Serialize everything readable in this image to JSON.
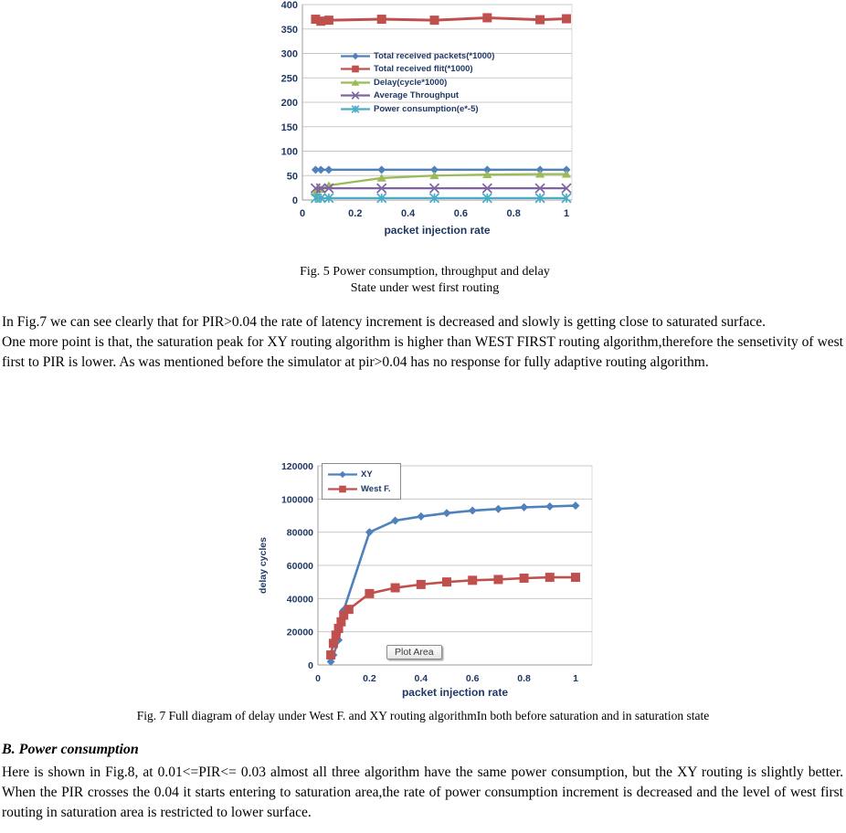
{
  "text": {
    "para1": "In Fig.7 we can see clearly that for PIR>0.04 the rate of latency increment is decreased and slowly is getting close to saturated surface.",
    "para2": "One more point is that, the saturation peak for XY routing algorithm is higher than WEST FIRST routing algorithm,therefore the sensetivity of west first to PIR is lower. As was mentioned before the simulator at pir>0.04 has no response for fully adaptive routing algorithm.",
    "section_b_heading": "B.  Power consumption",
    "para3": "Here is shown in Fig.8, at 0.01<=PIR<= 0.03 almost all three algorithm have the same power consumption, but the XY routing is slightly better. When the PIR crosses the 0.04 it starts entering to saturation area,the rate of power consumption increment is decreased and the level of west first routing in saturation area is restricted to lower surface."
  },
  "figures": {
    "fig5_caption_line1": "Fig. 5 Power consumption, throughput and delay",
    "fig5_caption_line2": "State under west first  routing",
    "fig7_caption": "Fig. 7  Full diagram of delay under West F. and XY routing algorithmIn both before saturation and in saturation state"
  },
  "colors": {
    "blue": "#4F81BD",
    "red": "#C0504D",
    "green": "#9BBB59",
    "purple": "#8064A2",
    "cyan": "#4BACC6",
    "axis_label": "#1F3864",
    "gridline": "#c8c8c8"
  },
  "chart_data": [
    {
      "type": "line",
      "title": "",
      "xlabel": "packet injection rate",
      "ylabel": "",
      "xlim": [
        0,
        1
      ],
      "ylim": [
        0,
        400
      ],
      "xticks": [
        0,
        0.2,
        0.4,
        0.6,
        0.8,
        1
      ],
      "yticks": [
        0,
        50,
        100,
        150,
        200,
        250,
        300,
        350,
        400
      ],
      "grid": true,
      "legend_position": "upper-left-inside",
      "series": [
        {
          "name": "Total received packets(*1000)",
          "color": "#4F81BD",
          "marker": "diamond",
          "msize": 4.5,
          "width": 2.3,
          "points": [
            [
              0.05,
              62
            ],
            [
              0.07,
              62
            ],
            [
              0.1,
              62
            ],
            [
              0.3,
              62
            ],
            [
              0.5,
              62
            ],
            [
              0.7,
              62
            ],
            [
              0.9,
              62
            ],
            [
              1,
              62
            ]
          ]
        },
        {
          "name": "Total received flit(*1000)",
          "color": "#C0504D",
          "marker": "square",
          "msize": 5,
          "width": 3,
          "points": [
            [
              0.05,
              370
            ],
            [
              0.07,
              366
            ],
            [
              0.1,
              368
            ],
            [
              0.3,
              370
            ],
            [
              0.5,
              368
            ],
            [
              0.7,
              373
            ],
            [
              0.9,
              369
            ],
            [
              1,
              371
            ]
          ]
        },
        {
          "name": "Delay(cycle*1000)",
          "color": "#9BBB59",
          "marker": "triangle",
          "msize": 4.5,
          "width": 2.3,
          "points": [
            [
              0.05,
              15
            ],
            [
              0.07,
              22
            ],
            [
              0.1,
              30
            ],
            [
              0.3,
              45
            ],
            [
              0.5,
              50
            ],
            [
              0.7,
              52
            ],
            [
              0.9,
              53
            ],
            [
              1,
              53
            ]
          ]
        },
        {
          "name": "Average Throughput",
          "color": "#8064A2",
          "marker": "x",
          "msize": 5,
          "width": 2.3,
          "points": [
            [
              0.05,
              24
            ],
            [
              0.07,
              24
            ],
            [
              0.1,
              24
            ],
            [
              0.3,
              24
            ],
            [
              0.5,
              24
            ],
            [
              0.7,
              24
            ],
            [
              0.9,
              24
            ],
            [
              1,
              24
            ]
          ]
        },
        {
          "name": "Power consumption(e*-5)",
          "color": "#4BACC6",
          "marker": "asterisk",
          "msize": 5,
          "width": 2.3,
          "points": [
            [
              0.05,
              4
            ],
            [
              0.07,
              4
            ],
            [
              0.1,
              4
            ],
            [
              0.3,
              4
            ],
            [
              0.5,
              4
            ],
            [
              0.7,
              4
            ],
            [
              0.9,
              4
            ],
            [
              1,
              4
            ]
          ]
        }
      ]
    },
    {
      "type": "line",
      "title": "",
      "xlabel": "packet injection rate",
      "ylabel": "delay cycles",
      "xlim": [
        0,
        1
      ],
      "ylim": [
        0,
        120000
      ],
      "xticks": [
        0,
        0.2,
        0.4,
        0.6,
        0.8,
        1
      ],
      "yticks": [
        0,
        20000,
        40000,
        60000,
        80000,
        100000,
        120000
      ],
      "grid": true,
      "legend_position": "upper-left-inside-boxed",
      "plot_area_label": "Plot Area",
      "series": [
        {
          "name": "XY",
          "color": "#4F81BD",
          "marker": "diamond",
          "msize": 4.5,
          "width": 2.6,
          "points": [
            [
              0.05,
              2000
            ],
            [
              0.06,
              6000
            ],
            [
              0.08,
              15000
            ],
            [
              0.1,
              33000
            ],
            [
              0.2,
              80000
            ],
            [
              0.3,
              87000
            ],
            [
              0.4,
              89500
            ],
            [
              0.5,
              91500
            ],
            [
              0.6,
              93000
            ],
            [
              0.7,
              94000
            ],
            [
              0.8,
              95000
            ],
            [
              0.9,
              95500
            ],
            [
              1,
              96000
            ]
          ]
        },
        {
          "name": "West F.",
          "color": "#C0504D",
          "marker": "square",
          "msize": 5,
          "width": 2.6,
          "points": [
            [
              0.05,
              6000
            ],
            [
              0.06,
              13000
            ],
            [
              0.07,
              18000
            ],
            [
              0.08,
              22000
            ],
            [
              0.09,
              26000
            ],
            [
              0.1,
              30000
            ],
            [
              0.12,
              33500
            ],
            [
              0.2,
              43000
            ],
            [
              0.3,
              46500
            ],
            [
              0.4,
              48500
            ],
            [
              0.5,
              50000
            ],
            [
              0.6,
              51000
            ],
            [
              0.7,
              51500
            ],
            [
              0.8,
              52300
            ],
            [
              0.9,
              52800
            ],
            [
              1,
              52800
            ]
          ]
        }
      ]
    }
  ]
}
